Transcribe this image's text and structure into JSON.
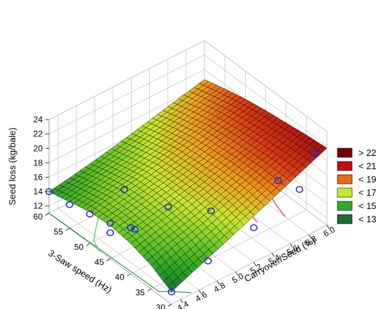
{
  "chart_data": {
    "type": "surface3d",
    "zlabel": "Seed loss (kg/bale)",
    "xlabel": "3-Saw speed (Hz)",
    "ylabel": "Carryover/Seed (%)",
    "x_ticks": [
      "60",
      "55",
      "50",
      "45",
      "40",
      "35",
      "30"
    ],
    "y_ticks": [
      "4.4",
      "4.6",
      "4.8",
      "5.0",
      "5.2",
      "5.4",
      "5.6",
      "5.8",
      "6.0"
    ],
    "z_ticks": [
      "12",
      "14",
      "16",
      "18",
      "20",
      "22",
      "24"
    ],
    "xlim": [
      30,
      60
    ],
    "ylim": [
      4.3,
      6.0
    ],
    "zlim": [
      11,
      24
    ],
    "surface": {
      "x": [
        60,
        55,
        50,
        45,
        40,
        35,
        30
      ],
      "y": [
        4.3,
        4.5,
        4.8,
        5.1,
        5.4,
        5.7,
        6.0
      ],
      "z": [
        [
          14.0,
          14.4,
          15.1,
          15.9,
          16.8,
          17.7,
          18.6
        ],
        [
          14.7,
          15.2,
          15.9,
          16.7,
          17.6,
          18.5,
          19.4
        ],
        [
          15.4,
          15.9,
          16.6,
          17.4,
          18.3,
          19.2,
          20.1
        ],
        [
          15.6,
          16.0,
          16.8,
          17.6,
          18.6,
          19.6,
          20.6
        ],
        [
          15.2,
          15.8,
          16.7,
          17.7,
          18.8,
          19.9,
          21.0
        ],
        [
          14.3,
          15.1,
          16.2,
          17.5,
          18.8,
          20.1,
          21.4
        ],
        [
          12.7,
          13.8,
          15.3,
          16.9,
          18.5,
          20.1,
          21.7
        ]
      ]
    },
    "points": [
      {
        "x": 60,
        "y": 4.3,
        "z": 14.0
      },
      {
        "x": 55,
        "y": 4.3,
        "z": 14.3
      },
      {
        "x": 50,
        "y": 4.3,
        "z": 15.1
      },
      {
        "x": 45,
        "y": 4.3,
        "z": 15.9
      },
      {
        "x": 40,
        "y": 4.3,
        "z": 17.4
      },
      {
        "x": 39,
        "y": 4.3,
        "z": 17.6
      },
      {
        "x": 30,
        "y": 4.3,
        "z": 12.7
      },
      {
        "x": 45,
        "y": 4.3,
        "z": 14.6
      },
      {
        "x": 42,
        "y": 4.8,
        "z": 16.2
      },
      {
        "x": 36,
        "y": 5.0,
        "z": 16.9
      },
      {
        "x": 33,
        "y": 5.6,
        "z": 18.5
      },
      {
        "x": 33,
        "y": 6.0,
        "z": 19.7
      },
      {
        "x": 30,
        "y": 5.2,
        "z": 15.8
      },
      {
        "x": 30,
        "y": 5.7,
        "z": 17.9
      },
      {
        "x": 55,
        "y": 4.9,
        "z": 12.5
      },
      {
        "x": 30,
        "y": 4.7,
        "z": 14.4
      }
    ],
    "legend": [
      {
        "label": "> 22",
        "color": "#7a0000"
      },
      {
        "label": "< 21",
        "color": "#c01010"
      },
      {
        "label": "< 19",
        "color": "#e86a1a"
      },
      {
        "label": "< 17",
        "color": "#c8e830"
      },
      {
        "label": "< 15",
        "color": "#2eae2e"
      },
      {
        "label": "< 13",
        "color": "#1a6e3a"
      }
    ],
    "contour_colors": [
      "#1a8a3a",
      "#3fbf3f",
      "#8fdc3a",
      "#e8c020",
      "#ef7a20",
      "#d82020"
    ],
    "marker_color": "#1e1ee0",
    "grid": true
  }
}
